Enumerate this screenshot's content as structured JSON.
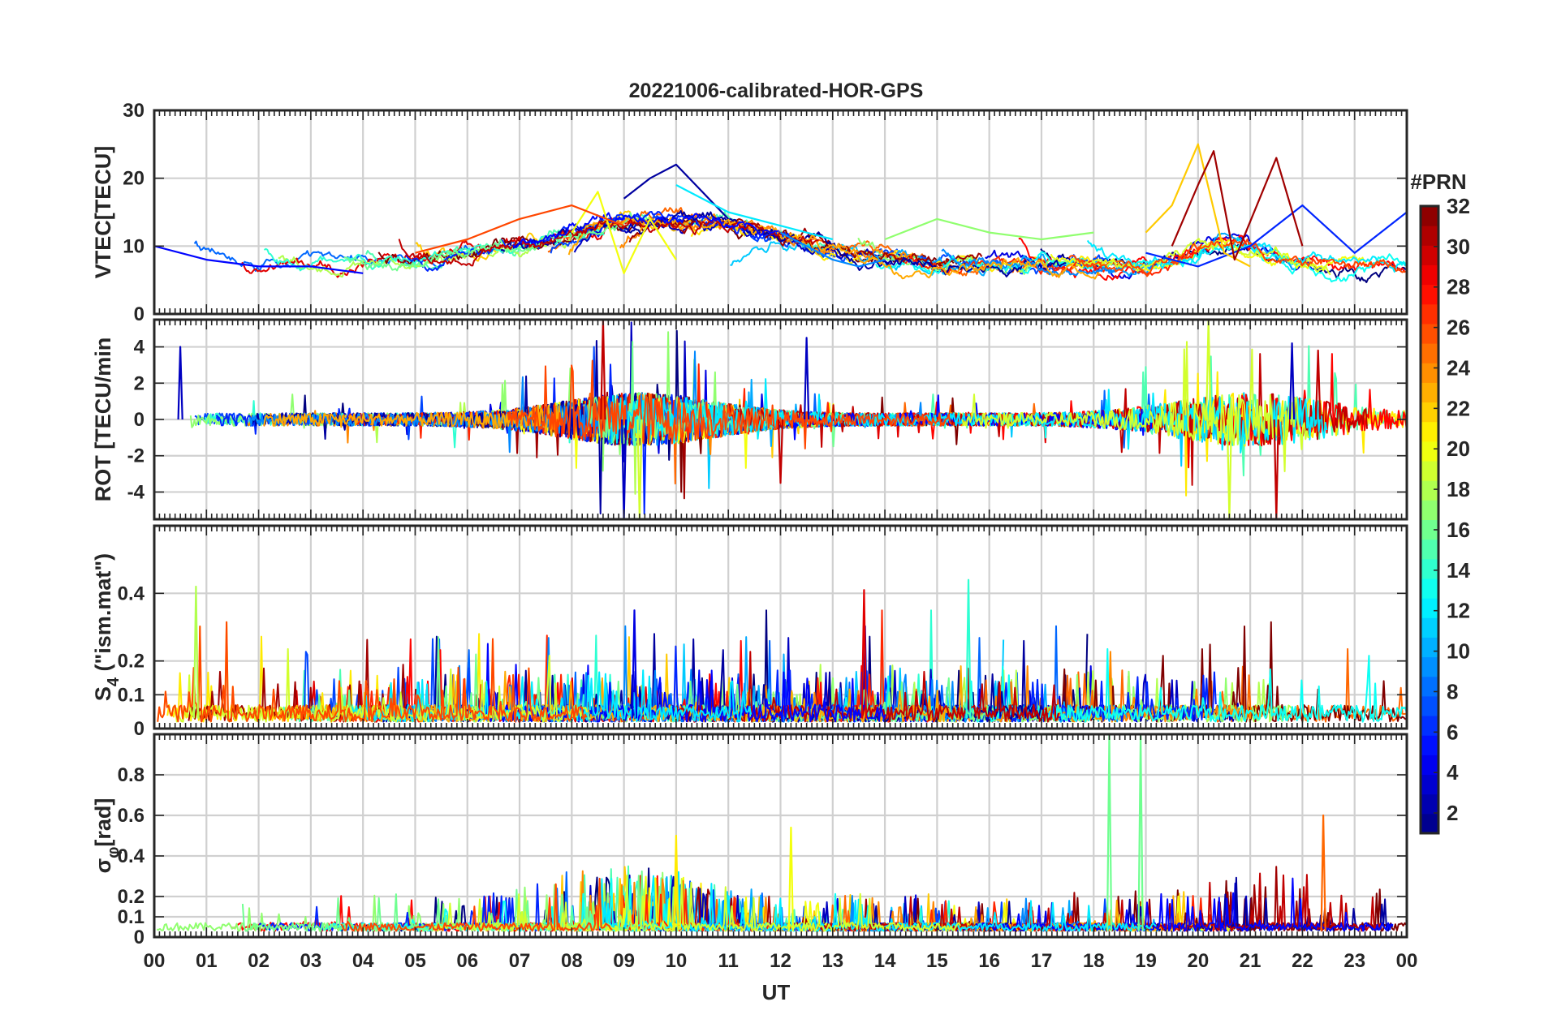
{
  "figure": {
    "title": "20221006-calibrated-HOR-GPS",
    "xlabel": "UT",
    "x_ticks": [
      "00",
      "01",
      "02",
      "03",
      "04",
      "05",
      "06",
      "07",
      "08",
      "09",
      "10",
      "11",
      "12",
      "13",
      "14",
      "15",
      "16",
      "17",
      "18",
      "19",
      "20",
      "21",
      "22",
      "23",
      "00"
    ]
  },
  "colorbar": {
    "label": "#PRN",
    "ticks": [
      2,
      4,
      6,
      8,
      10,
      12,
      14,
      16,
      18,
      20,
      22,
      24,
      26,
      28,
      30,
      32
    ],
    "range": [
      1,
      32
    ],
    "colormap": "jet"
  },
  "chart_data": [
    {
      "type": "line",
      "panel": "VTEC",
      "ylabel": "VTEC[TECU]",
      "ylim": [
        0,
        30
      ],
      "y_ticks": [
        0,
        10,
        20,
        30
      ],
      "x_unit": "hours UT",
      "xlim": [
        0,
        24
      ],
      "grid": true,
      "series": [
        {
          "prn": 2,
          "x": [
            9.0,
            9.5,
            10.0,
            10.5,
            11.0
          ],
          "values": [
            17,
            20,
            22,
            18,
            14
          ]
        },
        {
          "prn": 5,
          "x": [
            0.0,
            1.0,
            2.0,
            3.0,
            4.0
          ],
          "values": [
            10,
            8,
            7,
            7,
            6
          ]
        },
        {
          "prn": 6,
          "x": [
            19.0,
            20.0,
            21.0,
            22.0,
            23.0,
            24.0
          ],
          "values": [
            9,
            7,
            10,
            16,
            9,
            15
          ]
        },
        {
          "prn": 9,
          "x": [
            12.0,
            13.0,
            13.5,
            14.0
          ],
          "values": [
            12,
            8,
            7,
            8
          ]
        },
        {
          "prn": 12,
          "x": [
            10.0,
            11.0,
            12.0,
            13.0
          ],
          "values": [
            19,
            15,
            13,
            11
          ]
        },
        {
          "prn": 17,
          "x": [
            14.0,
            15.0,
            16.0,
            17.0,
            18.0
          ],
          "values": [
            11,
            14,
            12,
            11,
            12
          ]
        },
        {
          "prn": 20,
          "x": [
            8.0,
            8.5,
            9.0,
            9.5,
            10.0
          ],
          "values": [
            12,
            18,
            6,
            14,
            8
          ]
        },
        {
          "prn": 22,
          "x": [
            19.0,
            19.5,
            20.0,
            20.5,
            21.0
          ],
          "values": [
            12,
            16,
            25,
            9,
            7
          ]
        },
        {
          "prn": 26,
          "x": [
            5.0,
            6.0,
            7.0,
            8.0,
            9.0
          ],
          "values": [
            9,
            11,
            14,
            16,
            13
          ]
        },
        {
          "prn": 31,
          "x": [
            19.5,
            20.0,
            20.3,
            20.7,
            21.5,
            22.0
          ],
          "values": [
            10,
            19,
            24,
            8,
            23,
            10
          ]
        }
      ]
    },
    {
      "type": "line",
      "panel": "ROT",
      "ylabel": "ROT [TECU/min",
      "ylim": [
        -5.5,
        5.5
      ],
      "y_ticks": [
        -4,
        -2,
        0,
        2,
        4
      ],
      "x_unit": "hours UT",
      "xlim": [
        0,
        24
      ],
      "grid": true,
      "series": [
        {
          "prn": 3,
          "x": [
            0.5,
            9.0,
            12.5,
            21.8
          ],
          "values": [
            4.0,
            -5.5,
            4.5,
            4.2
          ]
        },
        {
          "prn": 19,
          "x": [
            9.3,
            20.2,
            20.6
          ],
          "values": [
            -5.5,
            5.5,
            -5.5
          ]
        },
        {
          "prn": 30,
          "x": [
            8.6,
            12.0,
            21.5,
            22.3
          ],
          "values": [
            5.5,
            -3.5,
            -5.5,
            3.8
          ]
        }
      ]
    },
    {
      "type": "line",
      "panel": "S4",
      "ylabel_main": "S",
      "ylabel_sub": "4",
      "ylabel_rest": " (\"ism.mat\")",
      "ylim": [
        0,
        0.6
      ],
      "y_ticks": [
        0,
        0.1,
        0.2,
        0.4
      ],
      "x_unit": "hours UT",
      "xlim": [
        0,
        24
      ],
      "grid": true,
      "series": [
        {
          "prn": 18,
          "x": [
            0.8
          ],
          "values": [
            0.42
          ]
        },
        {
          "prn": 14,
          "x": [
            15.6
          ],
          "values": [
            0.44
          ]
        },
        {
          "prn": 29,
          "x": [
            13.6
          ],
          "values": [
            0.41
          ]
        },
        {
          "prn": 4,
          "x": [
            9.2
          ],
          "values": [
            0.35
          ]
        }
      ]
    },
    {
      "type": "line",
      "panel": "sigma_phi",
      "ylabel_main": "σ",
      "ylabel_sub": "φ",
      "ylabel_rest": "[rad]",
      "ylim": [
        0,
        1
      ],
      "y_ticks": [
        0,
        0.1,
        0.2,
        0.4,
        0.6,
        0.8
      ],
      "x_unit": "hours UT",
      "xlim": [
        0,
        24
      ],
      "grid": true,
      "series": [
        {
          "prn": 16,
          "x": [
            18.3,
            18.9
          ],
          "values": [
            1.0,
            1.0
          ]
        },
        {
          "prn": 25,
          "x": [
            22.4
          ],
          "values": [
            0.6
          ]
        },
        {
          "prn": 20,
          "x": [
            12.2
          ],
          "values": [
            0.54
          ]
        },
        {
          "prn": 21,
          "x": [
            10.0
          ],
          "values": [
            0.5
          ]
        }
      ]
    }
  ]
}
